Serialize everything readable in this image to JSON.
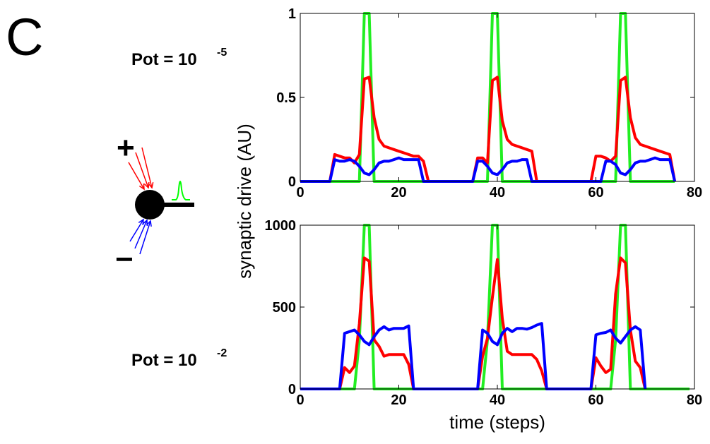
{
  "panel_letter": "C",
  "pot_top": {
    "prefix": "Pot = 10",
    "exponent": "-5"
  },
  "pot_bottom": {
    "prefix": "Pot = 10",
    "exponent": "-2"
  },
  "neuron": {
    "plus": "+",
    "minus": "−",
    "excitatory_color": "#ff0000",
    "inhibitory_color": "#0000ff",
    "spike_color": "#00ff00"
  },
  "colors": {
    "red": "#ff0000",
    "blue": "#0000ff",
    "green": "#22ee22"
  },
  "chart_data": [
    {
      "type": "line",
      "xlim": [
        0,
        80
      ],
      "ylim": [
        0,
        1
      ],
      "xticks": [
        0,
        20,
        40,
        60,
        80
      ],
      "yticks": [
        0,
        0.5,
        1
      ],
      "xtick_labels": [
        "0",
        "20",
        "40",
        "60",
        "80"
      ],
      "ytick_labels": [
        "0",
        "0.5",
        "1"
      ],
      "grid": false,
      "series": [
        {
          "color": "#22ee22",
          "points": [
            [
              0,
              0
            ],
            [
              12,
              0
            ],
            [
              13,
              1
            ],
            [
              14,
              1
            ],
            [
              15,
              0
            ],
            [
              38,
              0
            ],
            [
              39,
              1
            ],
            [
              40,
              1
            ],
            [
              41,
              0
            ],
            [
              64,
              0
            ],
            [
              65,
              1
            ],
            [
              66,
              1
            ],
            [
              67,
              0
            ],
            [
              76,
              0
            ]
          ]
        },
        {
          "color": "#ff0000",
          "points": [
            [
              0,
              0
            ],
            [
              6,
              0
            ],
            [
              7,
              0.16
            ],
            [
              8,
              0.15
            ],
            [
              9,
              0.14
            ],
            [
              10,
              0.14
            ],
            [
              11,
              0.11
            ],
            [
              12,
              0.16
            ],
            [
              13,
              0.61
            ],
            [
              14,
              0.62
            ],
            [
              15,
              0.38
            ],
            [
              16,
              0.25
            ],
            [
              17,
              0.21
            ],
            [
              18,
              0.2
            ],
            [
              19,
              0.19
            ],
            [
              20,
              0.18
            ],
            [
              21,
              0.17
            ],
            [
              22,
              0.16
            ],
            [
              23,
              0.15
            ],
            [
              24,
              0.15
            ],
            [
              25,
              0.12
            ],
            [
              26,
              0
            ],
            [
              32,
              0
            ],
            [
              33,
              0
            ],
            [
              34,
              0
            ],
            [
              35,
              0
            ],
            [
              36,
              0.14
            ],
            [
              37,
              0.14
            ],
            [
              38,
              0.11
            ],
            [
              39,
              0.6
            ],
            [
              40,
              0.62
            ],
            [
              41,
              0.36
            ],
            [
              42,
              0.25
            ],
            [
              43,
              0.22
            ],
            [
              44,
              0.21
            ],
            [
              45,
              0.2
            ],
            [
              46,
              0.19
            ],
            [
              47,
              0.18
            ],
            [
              48,
              0
            ],
            [
              58,
              0
            ],
            [
              59,
              0
            ],
            [
              60,
              0.15
            ],
            [
              61,
              0.15
            ],
            [
              62,
              0.14
            ],
            [
              63,
              0.12
            ],
            [
              64,
              0.15
            ],
            [
              65,
              0.6
            ],
            [
              66,
              0.62
            ],
            [
              67,
              0.38
            ],
            [
              68,
              0.26
            ],
            [
              69,
              0.22
            ],
            [
              70,
              0.21
            ],
            [
              71,
              0.2
            ],
            [
              72,
              0.19
            ],
            [
              73,
              0.18
            ],
            [
              74,
              0.17
            ],
            [
              75,
              0.16
            ],
            [
              76,
              0
            ]
          ]
        },
        {
          "color": "#0000ff",
          "points": [
            [
              0,
              0
            ],
            [
              6,
              0
            ],
            [
              7,
              0.13
            ],
            [
              8,
              0.12
            ],
            [
              9,
              0.12
            ],
            [
              10,
              0.13
            ],
            [
              11,
              0.12
            ],
            [
              12,
              0.09
            ],
            [
              13,
              0.05
            ],
            [
              14,
              0.04
            ],
            [
              15,
              0.07
            ],
            [
              16,
              0.11
            ],
            [
              17,
              0.12
            ],
            [
              18,
              0.12
            ],
            [
              19,
              0.13
            ],
            [
              20,
              0.14
            ],
            [
              21,
              0.13
            ],
            [
              22,
              0.13
            ],
            [
              23,
              0.13
            ],
            [
              24,
              0.13
            ],
            [
              25,
              0
            ],
            [
              35,
              0
            ],
            [
              36,
              0.12
            ],
            [
              37,
              0.12
            ],
            [
              38,
              0.09
            ],
            [
              39,
              0.05
            ],
            [
              40,
              0.04
            ],
            [
              41,
              0.07
            ],
            [
              42,
              0.11
            ],
            [
              43,
              0.12
            ],
            [
              44,
              0.12
            ],
            [
              45,
              0.13
            ],
            [
              46,
              0.13
            ],
            [
              47,
              0
            ],
            [
              61,
              0
            ],
            [
              62,
              0.12
            ],
            [
              63,
              0.12
            ],
            [
              64,
              0.1
            ],
            [
              65,
              0.05
            ],
            [
              66,
              0.04
            ],
            [
              67,
              0.07
            ],
            [
              68,
              0.11
            ],
            [
              69,
              0.12
            ],
            [
              70,
              0.12
            ],
            [
              71,
              0.13
            ],
            [
              72,
              0.14
            ],
            [
              73,
              0.13
            ],
            [
              74,
              0.13
            ],
            [
              75,
              0.13
            ],
            [
              76,
              0
            ]
          ]
        }
      ]
    },
    {
      "type": "line",
      "xlim": [
        0,
        80
      ],
      "ylim": [
        0,
        1000
      ],
      "xticks": [
        0,
        20,
        40,
        60,
        80
      ],
      "yticks": [
        0,
        500,
        1000
      ],
      "xtick_labels": [
        "0",
        "20",
        "40",
        "60",
        "80"
      ],
      "ytick_labels": [
        "0",
        "500",
        "1000"
      ],
      "xlabel": "time (steps)",
      "grid": false,
      "series": [
        {
          "color": "#22ee22",
          "points": [
            [
              0,
              0
            ],
            [
              11,
              0
            ],
            [
              12,
              300
            ],
            [
              13,
              1000
            ],
            [
              14,
              1000
            ],
            [
              15,
              0
            ],
            [
              37,
              0
            ],
            [
              38,
              300
            ],
            [
              39,
              1000
            ],
            [
              40,
              1000
            ],
            [
              41,
              0
            ],
            [
              63,
              0
            ],
            [
              64,
              300
            ],
            [
              65,
              1000
            ],
            [
              66,
              1000
            ],
            [
              67,
              0
            ],
            [
              79,
              0
            ]
          ]
        },
        {
          "color": "#ff0000",
          "points": [
            [
              0,
              0
            ],
            [
              8,
              0
            ],
            [
              9,
              130
            ],
            [
              10,
              100
            ],
            [
              11,
              140
            ],
            [
              12,
              400
            ],
            [
              13,
              800
            ],
            [
              14,
              780
            ],
            [
              15,
              300
            ],
            [
              16,
              260
            ],
            [
              17,
              200
            ],
            [
              18,
              210
            ],
            [
              19,
              210
            ],
            [
              20,
              210
            ],
            [
              21,
              210
            ],
            [
              22,
              150
            ],
            [
              23,
              0
            ],
            [
              36,
              0
            ],
            [
              37,
              200
            ],
            [
              38,
              310
            ],
            [
              39,
              560
            ],
            [
              40,
              790
            ],
            [
              41,
              430
            ],
            [
              42,
              230
            ],
            [
              43,
              210
            ],
            [
              44,
              210
            ],
            [
              45,
              210
            ],
            [
              46,
              210
            ],
            [
              47,
              210
            ],
            [
              48,
              180
            ],
            [
              49,
              110
            ],
            [
              50,
              0
            ],
            [
              59,
              0
            ],
            [
              60,
              190
            ],
            [
              61,
              140
            ],
            [
              62,
              100
            ],
            [
              63,
              120
            ],
            [
              64,
              580
            ],
            [
              65,
              800
            ],
            [
              66,
              770
            ],
            [
              67,
              360
            ],
            [
              68,
              170
            ],
            [
              69,
              130
            ],
            [
              70,
              0
            ]
          ]
        },
        {
          "color": "#0000ff",
          "points": [
            [
              0,
              0
            ],
            [
              8,
              0
            ],
            [
              9,
              340
            ],
            [
              10,
              350
            ],
            [
              11,
              360
            ],
            [
              12,
              330
            ],
            [
              13,
              290
            ],
            [
              14,
              270
            ],
            [
              15,
              320
            ],
            [
              16,
              360
            ],
            [
              17,
              380
            ],
            [
              18,
              360
            ],
            [
              19,
              370
            ],
            [
              20,
              370
            ],
            [
              21,
              370
            ],
            [
              22,
              385
            ],
            [
              23,
              0
            ],
            [
              36,
              0
            ],
            [
              37,
              360
            ],
            [
              38,
              340
            ],
            [
              39,
              290
            ],
            [
              40,
              270
            ],
            [
              41,
              340
            ],
            [
              42,
              370
            ],
            [
              43,
              350
            ],
            [
              44,
              370
            ],
            [
              45,
              370
            ],
            [
              46,
              365
            ],
            [
              47,
              375
            ],
            [
              48,
              390
            ],
            [
              49,
              400
            ],
            [
              50,
              0
            ],
            [
              59,
              0
            ],
            [
              60,
              330
            ],
            [
              61,
              340
            ],
            [
              62,
              345
            ],
            [
              63,
              360
            ],
            [
              64,
              310
            ],
            [
              65,
              280
            ],
            [
              66,
              320
            ],
            [
              67,
              360
            ],
            [
              68,
              380
            ],
            [
              69,
              360
            ],
            [
              70,
              0
            ]
          ]
        }
      ]
    }
  ],
  "shared_ylabel": "synaptic drive (AU)"
}
